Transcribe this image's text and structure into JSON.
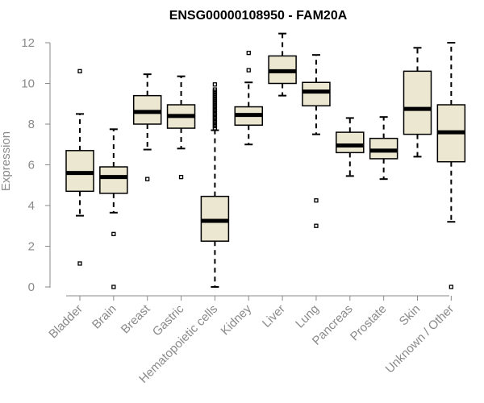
{
  "chart_data": {
    "type": "boxplot",
    "title": "ENSG00000108950 - FAM20A",
    "ylabel": "Expression",
    "ylim": [
      0,
      12.4
    ],
    "yticks": [
      0,
      2,
      4,
      6,
      8,
      10,
      12
    ],
    "grid": false,
    "box_fill": "#ece7d0",
    "categories": [
      "Bladder",
      "Brain",
      "Breast",
      "Gastric",
      "Hematopoietic cells",
      "Kidney",
      "Liver",
      "Lung",
      "Pancreas",
      "Prostate",
      "Skin",
      "Unknown / Other"
    ],
    "boxes": [
      {
        "min": 3.5,
        "q1": 4.7,
        "median": 5.6,
        "q3": 6.7,
        "max": 8.5,
        "outliers": [
          10.6,
          1.15
        ]
      },
      {
        "min": 3.65,
        "q1": 4.6,
        "median": 5.4,
        "q3": 5.9,
        "max": 7.75,
        "outliers": [
          2.6,
          0.0
        ]
      },
      {
        "min": 6.75,
        "q1": 8.0,
        "median": 8.6,
        "q3": 9.4,
        "max": 10.45,
        "outliers": [
          5.3
        ]
      },
      {
        "min": 6.8,
        "q1": 7.8,
        "median": 8.4,
        "q3": 8.95,
        "max": 10.35,
        "outliers": [
          5.4
        ]
      },
      {
        "min": 0.0,
        "q1": 2.25,
        "median": 3.25,
        "q3": 4.45,
        "max": 7.7,
        "outliers": [
          7.8,
          7.9,
          8.0,
          8.1,
          8.2,
          8.3,
          8.4,
          8.5,
          8.6,
          8.7,
          8.8,
          8.9,
          9.0,
          9.1,
          9.2,
          9.3,
          9.4,
          9.5,
          9.6,
          9.7,
          9.95
        ]
      },
      {
        "min": 7.0,
        "q1": 7.95,
        "median": 8.45,
        "q3": 8.85,
        "max": 10.05,
        "outliers": [
          10.65,
          11.5
        ]
      },
      {
        "min": 9.4,
        "q1": 10.0,
        "median": 10.6,
        "q3": 11.35,
        "max": 12.45,
        "outliers": []
      },
      {
        "min": 7.5,
        "q1": 8.9,
        "median": 9.6,
        "q3": 10.05,
        "max": 11.4,
        "outliers": [
          4.25,
          3.0
        ]
      },
      {
        "min": 5.45,
        "q1": 6.6,
        "median": 6.95,
        "q3": 7.6,
        "max": 8.3,
        "outliers": []
      },
      {
        "min": 5.3,
        "q1": 6.3,
        "median": 6.7,
        "q3": 7.3,
        "max": 8.35,
        "outliers": []
      },
      {
        "min": 6.4,
        "q1": 7.5,
        "median": 8.75,
        "q3": 10.6,
        "max": 11.75,
        "outliers": []
      },
      {
        "min": 3.2,
        "q1": 6.15,
        "median": 7.6,
        "q3": 8.95,
        "max": 12.0,
        "outliers": [
          0.0
        ]
      }
    ]
  }
}
